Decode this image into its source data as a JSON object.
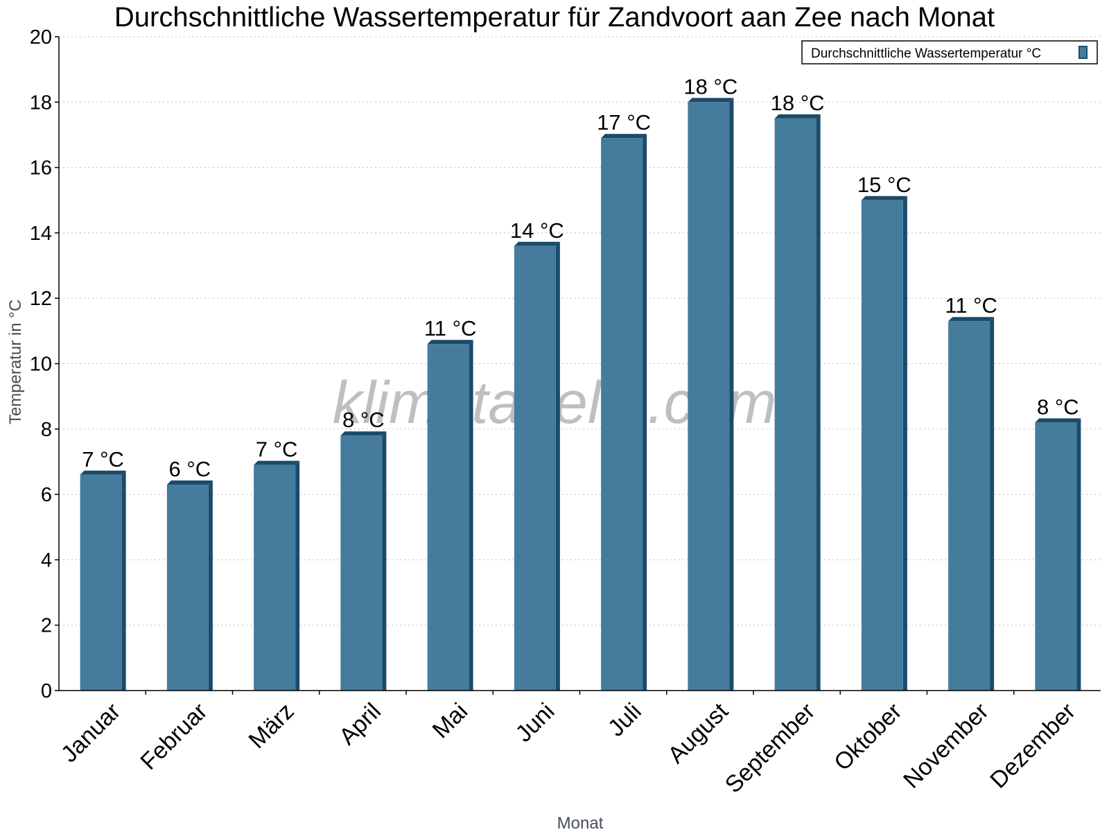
{
  "chart_data": {
    "type": "bar",
    "title": "Durchschnittliche Wassertemperatur für Zandvoort aan Zee nach Monat",
    "xlabel": "Monat",
    "ylabel": "Temperatur in °C",
    "ylim": [
      0,
      20
    ],
    "yticks": [
      0,
      2,
      4,
      6,
      8,
      10,
      12,
      14,
      16,
      18,
      20
    ],
    "grid": true,
    "legend_position": "top-right",
    "categories": [
      "Januar",
      "Februar",
      "März",
      "April",
      "Mai",
      "Juni",
      "Juli",
      "August",
      "September",
      "Oktober",
      "November",
      "Dezember"
    ],
    "series": [
      {
        "name": "Durchschnittliche Wassertemperatur °C",
        "values": [
          6.6,
          6.3,
          6.9,
          7.8,
          10.6,
          13.6,
          16.9,
          18.0,
          17.5,
          15.0,
          11.3,
          8.2
        ],
        "labels": [
          "7 °C",
          "6 °C",
          "7 °C",
          "8 °C",
          "11 °C",
          "14 °C",
          "17 °C",
          "18 °C",
          "18 °C",
          "15 °C",
          "11 °C",
          "8 °C"
        ],
        "color": "#457b9d",
        "edge_color": "#1b4a6b"
      }
    ],
    "watermark": "klimatabelle.com"
  }
}
